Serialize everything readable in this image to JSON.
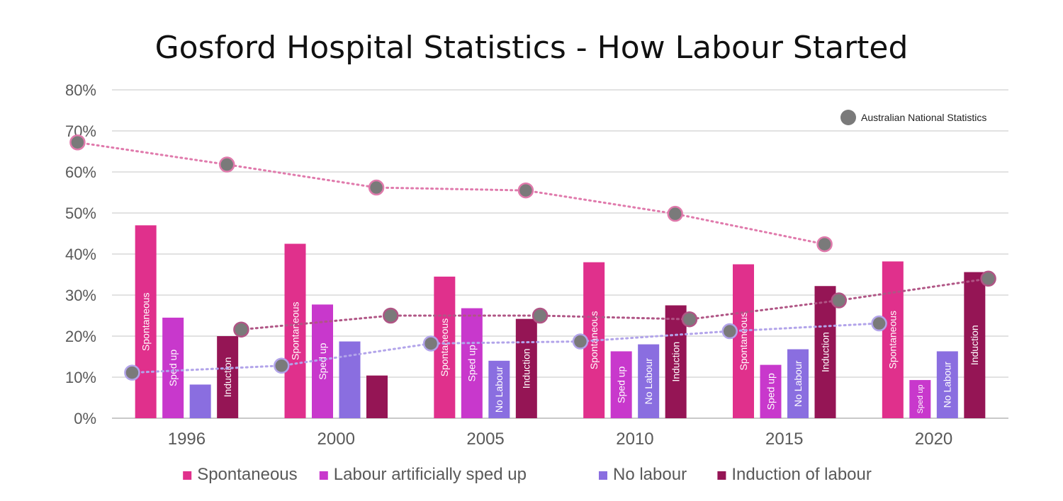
{
  "chart_data": {
    "type": "bar",
    "title": "Gosford Hospital Statistics  - How Labour Started",
    "categories": [
      "1996",
      "2000",
      "2005",
      "2010",
      "2015",
      "2020"
    ],
    "ylim": [
      0,
      80
    ],
    "yticks": [
      "0%",
      "10%",
      "20%",
      "30%",
      "40%",
      "50%",
      "60%",
      "70%",
      "80%"
    ],
    "ytick_values": [
      0,
      10,
      20,
      30,
      40,
      50,
      60,
      70,
      80
    ],
    "grid": true,
    "legend_position": "bottom",
    "series": [
      {
        "name": "Spontaneous",
        "color": "#e0308c",
        "values": [
          47,
          42.5,
          34.5,
          38,
          37.5,
          38.2
        ],
        "bar_labels": [
          "Spontaneous",
          "Spontaneous",
          "Spontaneous",
          "Spontaneous",
          "Spontaneous",
          "Spontaneous"
        ]
      },
      {
        "name": "Labour artificially sped up",
        "color": "#c838cc",
        "values": [
          24.5,
          27.7,
          26.8,
          16.3,
          13,
          9.3
        ],
        "bar_labels": [
          "Sped up",
          "Sped up",
          "Sped up",
          "Sped up",
          "Sped up",
          "Sped up"
        ]
      },
      {
        "name": "No labour",
        "color": "#8a6ee0",
        "values": [
          8.2,
          18.7,
          14,
          18,
          16.8,
          16.3
        ],
        "bar_labels": [
          "",
          "",
          "No Labour",
          "No Labour",
          "No Labour",
          "No Labour"
        ]
      },
      {
        "name": "Induction of labour",
        "color": "#951555",
        "values": [
          20,
          10.4,
          24.2,
          27.5,
          32.2,
          35.6
        ],
        "bar_labels": [
          "Induction",
          "",
          "Induction",
          "Induction",
          "Induction",
          "Induction"
        ]
      }
    ],
    "national": {
      "label": "Australian National Statistics",
      "marker_color": "#7a7a7a",
      "trend_lines": [
        {
          "series": "Spontaneous",
          "color": "#e07aac",
          "values": [
            67.2,
            61.8,
            56.2,
            55.5,
            49.8,
            42.4
          ]
        },
        {
          "series": "No labour",
          "color": "#b2a4ea",
          "values": [
            11.1,
            12.8,
            18.2,
            18.7,
            21.2,
            23.1
          ]
        },
        {
          "series": "Induction of labour",
          "color": "#b05585",
          "values": [
            21.6,
            25,
            25,
            24.1,
            28.7,
            34
          ]
        }
      ]
    }
  }
}
